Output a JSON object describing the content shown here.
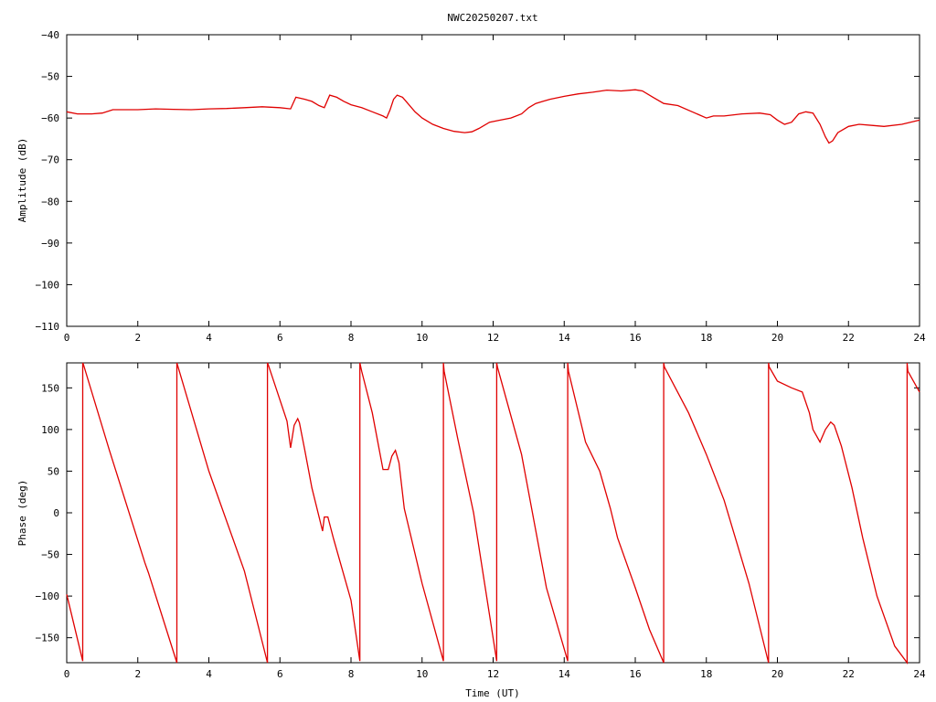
{
  "title": "NWC20250207.txt",
  "colors": {
    "trace": "#e00000",
    "axis": "#000000",
    "background": "#ffffff"
  },
  "chart_data": [
    {
      "type": "line",
      "xlabel": "",
      "ylabel": "Amplitude (dB)",
      "xlim": [
        0,
        24
      ],
      "ylim": [
        -110,
        -40
      ],
      "xticks": [
        0,
        2,
        4,
        6,
        8,
        10,
        12,
        14,
        16,
        18,
        20,
        22,
        24
      ],
      "yticks": [
        -40,
        -50,
        -60,
        -70,
        -80,
        -90,
        -100,
        -110
      ],
      "xtick_labels": [
        "0",
        "2",
        "4",
        "6",
        "8",
        "10",
        "12",
        "14",
        "16",
        "18",
        "20",
        "22",
        "24"
      ],
      "ytick_labels": [
        "−40",
        "−50",
        "−60",
        "−70",
        "−80",
        "−90",
        "−100",
        "−110"
      ],
      "grid": false,
      "series": [
        {
          "x": [
            0,
            0.3,
            0.7,
            1.0,
            1.3,
            2.0,
            2.5,
            3.0,
            3.5,
            4.0,
            4.5,
            5.0,
            5.5,
            6.0,
            6.3,
            6.45,
            6.55,
            6.7,
            6.9,
            7.1,
            7.25,
            7.4,
            7.6,
            7.8,
            8.0,
            8.3,
            8.6,
            8.9,
            9.0,
            9.1,
            9.2,
            9.3,
            9.45,
            9.6,
            9.8,
            10.0,
            10.3,
            10.6,
            10.9,
            11.2,
            11.4,
            11.6,
            11.9,
            12.2,
            12.5,
            12.8,
            13.0,
            13.2,
            13.4,
            13.6,
            14.0,
            14.4,
            14.8,
            15.2,
            15.6,
            16.0,
            16.2,
            16.5,
            16.8,
            17.2,
            17.6,
            18.0,
            18.2,
            18.5,
            19.0,
            19.5,
            19.8,
            20.0,
            20.2,
            20.4,
            20.6,
            20.8,
            21.0,
            21.2,
            21.35,
            21.45,
            21.55,
            21.7,
            22.0,
            22.3,
            22.7,
            23.0,
            23.5,
            24.0
          ],
          "y": [
            -58.5,
            -59.0,
            -59.0,
            -58.8,
            -58.0,
            -58.0,
            -57.8,
            -57.9,
            -58.0,
            -57.8,
            -57.7,
            -57.5,
            -57.3,
            -57.5,
            -57.8,
            -55.0,
            -55.2,
            -55.5,
            -56.0,
            -57.0,
            -57.5,
            -54.5,
            -55.0,
            -56.0,
            -56.8,
            -57.5,
            -58.5,
            -59.5,
            -60.0,
            -58.0,
            -55.5,
            -54.5,
            -55.0,
            -56.5,
            -58.5,
            -60.0,
            -61.5,
            -62.5,
            -63.2,
            -63.5,
            -63.3,
            -62.5,
            -61.0,
            -60.5,
            -60.0,
            -59.0,
            -57.5,
            -56.5,
            -56.0,
            -55.5,
            -54.8,
            -54.2,
            -53.8,
            -53.3,
            -53.5,
            -53.2,
            -53.5,
            -55.0,
            -56.5,
            -57.0,
            -58.5,
            -60.0,
            -59.5,
            -59.5,
            -59.0,
            -58.8,
            -59.2,
            -60.5,
            -61.5,
            -61.0,
            -59.0,
            -58.5,
            -58.8,
            -61.5,
            -64.5,
            -66.0,
            -65.5,
            -63.5,
            -62.0,
            -61.5,
            -61.8,
            -62.0,
            -61.5,
            -60.5
          ]
        }
      ]
    },
    {
      "type": "line",
      "xlabel": "Time (UT)",
      "ylabel": "Phase (deg)",
      "xlim": [
        0,
        24
      ],
      "ylim": [
        -180,
        180
      ],
      "xticks": [
        0,
        2,
        4,
        6,
        8,
        10,
        12,
        14,
        16,
        18,
        20,
        22,
        24
      ],
      "yticks": [
        150,
        100,
        50,
        0,
        -50,
        -100,
        -150
      ],
      "xtick_labels": [
        "0",
        "2",
        "4",
        "6",
        "8",
        "10",
        "12",
        "14",
        "16",
        "18",
        "20",
        "22",
        "24"
      ],
      "ytick_labels": [
        "150",
        "100",
        "50",
        "0",
        "−50",
        "−100",
        "−150"
      ],
      "grid": false,
      "series": [
        {
          "x": [
            0,
            0.45,
            0.45,
            0.47,
            1.2,
            2.2,
            2.3,
            3.1,
            3.1,
            3.12,
            4.0,
            5.0,
            5.65,
            5.65,
            5.67,
            6.2,
            6.3,
            6.4,
            6.5,
            6.55,
            6.7,
            6.9,
            7.2,
            7.25,
            7.35,
            7.5,
            8.0,
            8.25,
            8.25,
            8.3,
            8.6,
            8.9,
            9.05,
            9.15,
            9.25,
            9.35,
            9.5,
            10.0,
            10.6,
            10.6,
            10.62,
            11.0,
            11.45,
            12.1,
            12.1,
            12.12,
            12.8,
            13.5,
            14.1,
            14.1,
            14.12,
            14.6,
            15.0,
            15.3,
            15.5,
            16.0,
            16.4,
            16.8,
            16.8,
            16.82,
            17.5,
            18.0,
            18.5,
            19.2,
            19.75,
            19.75,
            19.77,
            20.0,
            20.4,
            20.7,
            20.9,
            21.0,
            21.2,
            21.35,
            21.5,
            21.6,
            21.8,
            22.1,
            22.4,
            22.8,
            23.3,
            23.65,
            23.65,
            23.67,
            24.0
          ],
          "y": [
            -98,
            -178,
            180,
            178,
            75,
            -60,
            -72,
            -180,
            180,
            177,
            50,
            -70,
            -180,
            180,
            178,
            110,
            78,
            105,
            113,
            108,
            75,
            30,
            -22,
            -5,
            -5,
            -30,
            -105,
            -178,
            180,
            170,
            120,
            52,
            52,
            68,
            75,
            60,
            5,
            -85,
            -178,
            180,
            170,
            90,
            0,
            -178,
            180,
            175,
            70,
            -90,
            -178,
            180,
            170,
            85,
            50,
            5,
            -30,
            -90,
            -140,
            -180,
            180,
            175,
            120,
            70,
            15,
            -85,
            -180,
            180,
            175,
            158,
            150,
            145,
            120,
            100,
            85,
            100,
            109,
            105,
            80,
            30,
            -30,
            -100,
            -160,
            -180,
            180,
            170,
            145
          ]
        }
      ]
    }
  ]
}
